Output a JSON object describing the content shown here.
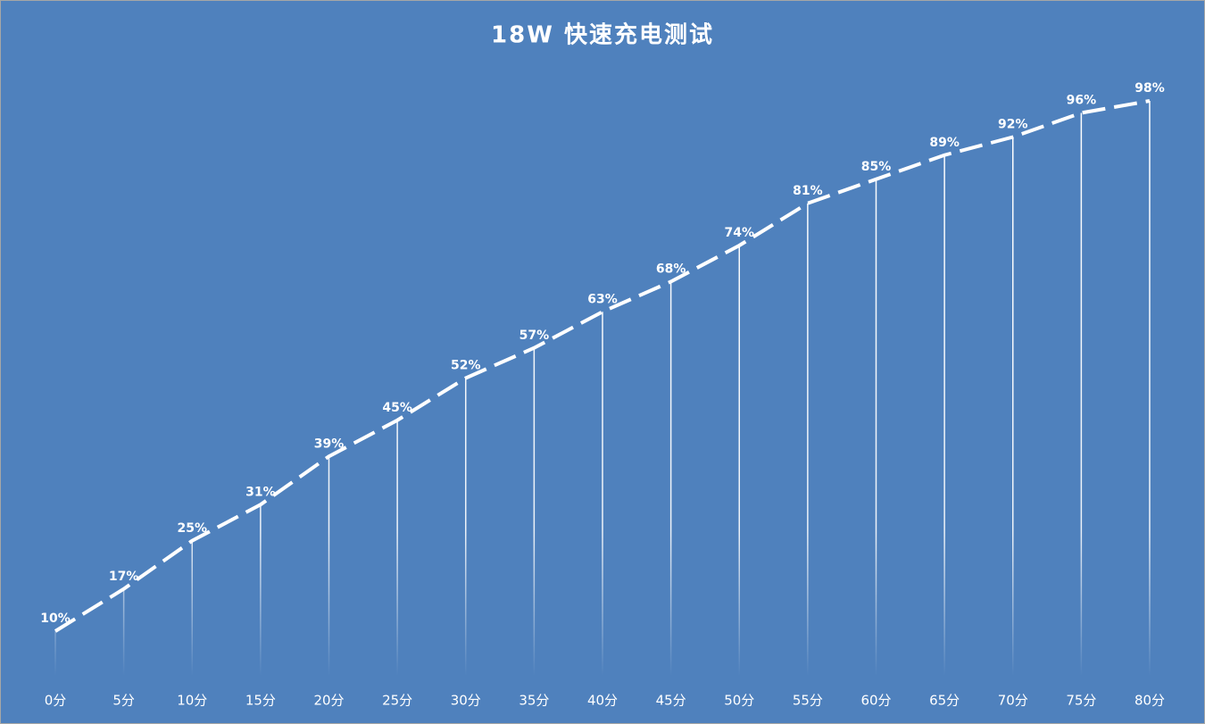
{
  "chart_data": {
    "type": "line",
    "title": "18W 快速充电测试",
    "categories": [
      "0分",
      "5分",
      "10分",
      "15分",
      "20分",
      "25分",
      "30分",
      "35分",
      "40分",
      "45分",
      "50分",
      "55分",
      "60分",
      "65分",
      "70分",
      "75分",
      "80分"
    ],
    "values": [
      10,
      17,
      25,
      31,
      39,
      45,
      52,
      57,
      63,
      68,
      74,
      81,
      85,
      89,
      92,
      96,
      98
    ],
    "value_labels": [
      "10%",
      "17%",
      "25%",
      "31%",
      "39%",
      "45%",
      "52%",
      "57%",
      "63%",
      "68%",
      "74%",
      "81%",
      "85%",
      "89%",
      "92%",
      "96%",
      "98%"
    ],
    "color": "#ffffff",
    "background": "#4f81bd"
  }
}
